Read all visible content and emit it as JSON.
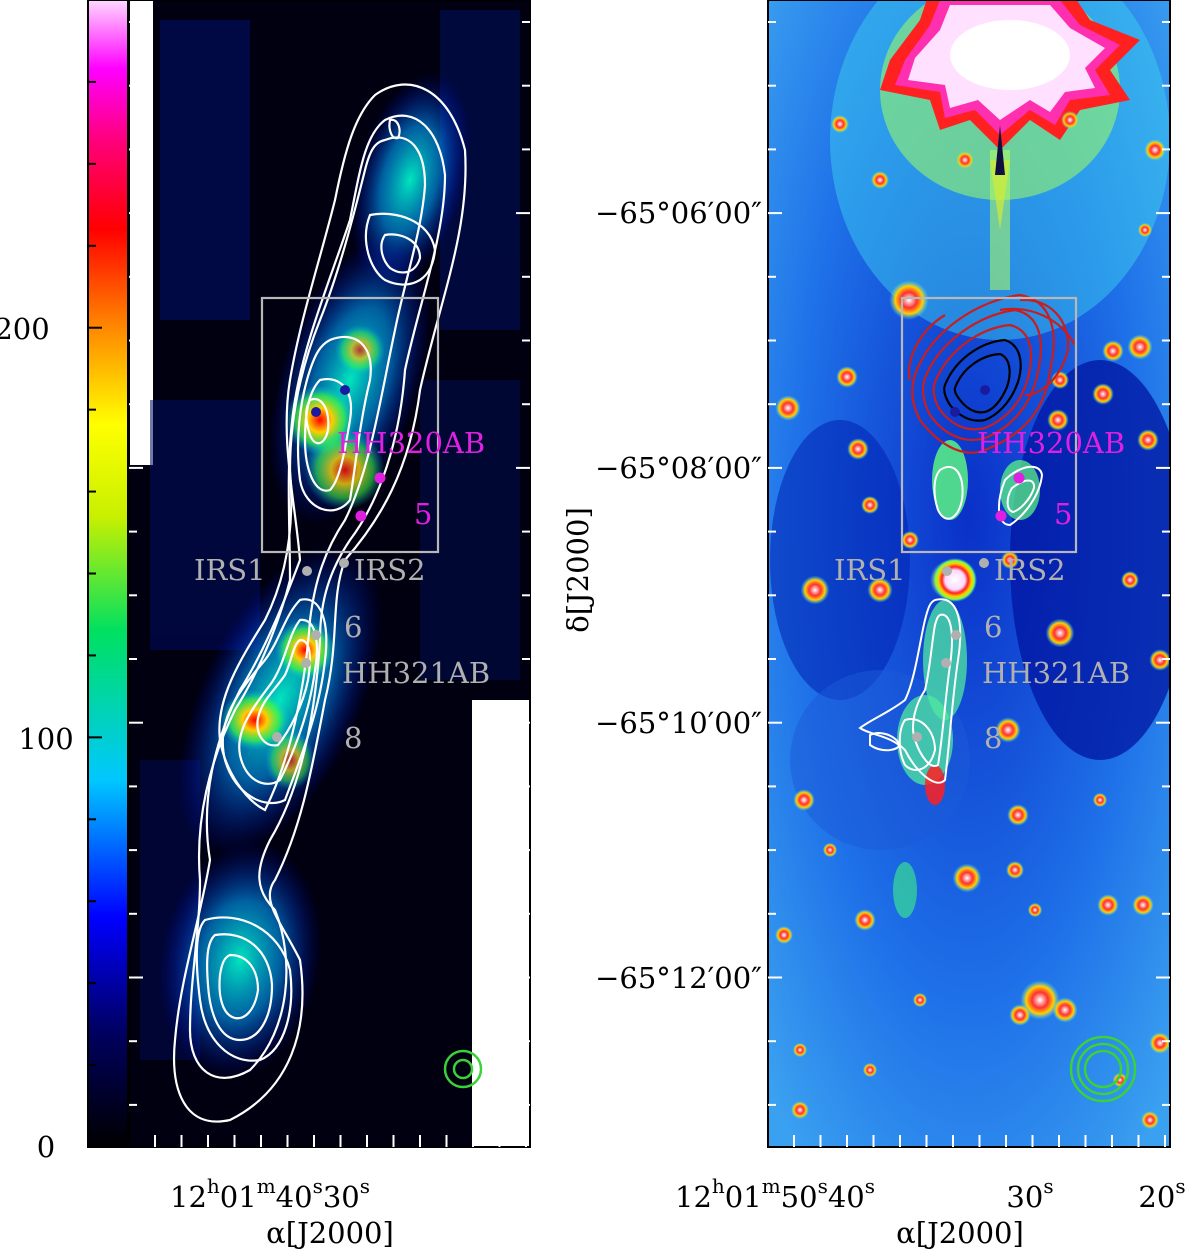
{
  "colorbar": {
    "tick_labels": [
      "0",
      "100",
      "200"
    ],
    "ticks": [
      0,
      100,
      200
    ],
    "range": [
      0,
      280
    ]
  },
  "left_panel": {
    "ra_ticks": [
      {
        "h": "12",
        "m": "01",
        "s": "40"
      },
      {
        "s": "30"
      }
    ],
    "xlabel": "α[J2000]",
    "labels": {
      "hh320": "HH320AB",
      "five": "5",
      "irs1": "IRS1",
      "irs2": "IRS2",
      "six": "6",
      "hh321": "HH321AB",
      "eight": "8"
    }
  },
  "right_panel": {
    "ra_ticks": [
      {
        "h": "12",
        "m": "01",
        "s": "50"
      },
      {
        "s": "40"
      },
      {
        "s": "30"
      },
      {
        "s": "20"
      }
    ],
    "xlabel": "α[J2000]",
    "labels": {
      "hh320": "HH320AB",
      "five": "5",
      "irs1": "IRS1",
      "irs2": "IRS2",
      "six": "6",
      "hh321": "HH321AB",
      "eight": "8"
    }
  },
  "dec_axis": {
    "label": "δ[J2000]",
    "ticks": [
      "−65°06′00″",
      "−65°08′00″",
      "−65°10′00″",
      "−65°12′00″"
    ]
  },
  "colors": {
    "magenta": "#e020e0",
    "gray": "#b0b0b0",
    "blue_dot": "#1a1aa0",
    "beam": "#39d239"
  }
}
